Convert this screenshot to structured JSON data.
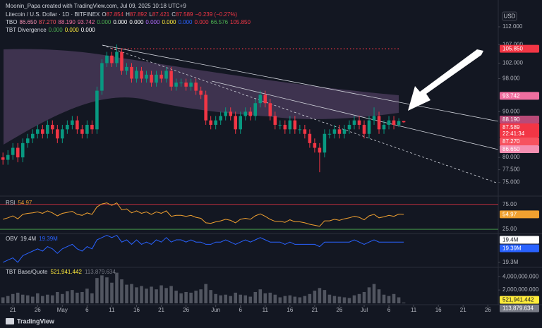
{
  "header": {
    "author_line": "Moonin_Papa created with TradingView.com, Jul 09, 2025 10:18 UTC+9",
    "symbol": "Litecoin / U.S. Dollar · 1D · BITFINEX",
    "ohlc": [
      {
        "key": "O",
        "value": "87.854"
      },
      {
        "key": "H",
        "value": "87.892"
      },
      {
        "key": "L",
        "value": "87.421"
      },
      {
        "key": "C",
        "value": "87.589"
      }
    ],
    "change": "−0.239 (−0.27%)",
    "tbo_name": "TBO",
    "tbo_values": [
      {
        "text": "86.650",
        "color": "#f48fb1"
      },
      {
        "text": "87.270",
        "color": "#f7525f"
      },
      {
        "text": "88.190",
        "color": "#f06fa0"
      },
      {
        "text": "93.742",
        "color": "#f06fa0"
      },
      {
        "text": "0.000",
        "color": "#4caf50"
      },
      {
        "text": "0.000",
        "color": "#ffffff"
      },
      {
        "text": "0.000",
        "color": "#ffffff"
      },
      {
        "text": "0.000",
        "color": "#b36bff"
      },
      {
        "text": "0.000",
        "color": "#ffeb3b"
      },
      {
        "text": "0.000",
        "color": "#2962ff"
      },
      {
        "text": "0.000",
        "color": "#f23645"
      },
      {
        "text": "66.576",
        "color": "#4caf50"
      },
      {
        "text": "105.850",
        "color": "#f23645"
      }
    ],
    "div_name": "TBT Divergence",
    "div_values": [
      {
        "text": "0.000",
        "color": "#4caf50"
      },
      {
        "text": "0.000",
        "color": "#ffeb3b"
      },
      {
        "text": "0.000",
        "color": "#ffffff"
      }
    ],
    "footer": "TradingView"
  },
  "chart_data": [
    {
      "type": "candlestick",
      "currency": "USD",
      "log": true,
      "up_color": "#089981",
      "down_color": "#f23645",
      "ylim": [
        72.8,
        117
      ],
      "yticks": [
        {
          "value": 112,
          "label": "112.000"
        },
        {
          "value": 107,
          "label": "107.000"
        },
        {
          "value": 102,
          "label": "102.000"
        },
        {
          "value": 98,
          "label": "98.000"
        },
        {
          "value": 90,
          "label": "90.000"
        },
        {
          "value": 80,
          "label": "80.000"
        },
        {
          "value": 77.5,
          "label": "77.500"
        },
        {
          "value": 75,
          "label": "75.000"
        }
      ],
      "xlim": [
        -0.6,
        100.1
      ],
      "xticks": [
        {
          "value": 2,
          "label": "21"
        },
        {
          "value": 7,
          "label": "26"
        },
        {
          "value": 12,
          "label": "May"
        },
        {
          "value": 17,
          "label": "6"
        },
        {
          "value": 22,
          "label": "11"
        },
        {
          "value": 27,
          "label": "16"
        },
        {
          "value": 32,
          "label": "21"
        },
        {
          "value": 37,
          "label": "26"
        },
        {
          "value": 43,
          "label": "Jun"
        },
        {
          "value": 48,
          "label": "6"
        },
        {
          "value": 53,
          "label": "11"
        },
        {
          "value": 58,
          "label": "16"
        },
        {
          "value": 63,
          "label": "21"
        },
        {
          "value": 68,
          "label": "26"
        },
        {
          "value": 73,
          "label": "Jul"
        },
        {
          "value": 78,
          "label": "6"
        },
        {
          "value": 83,
          "label": "11"
        },
        {
          "value": 88,
          "label": "16"
        },
        {
          "value": 93,
          "label": "21"
        },
        {
          "value": 98,
          "label": "26"
        }
      ],
      "open": [
        80,
        79.5,
        80.5,
        82,
        80,
        83,
        84,
        85,
        86,
        85,
        87,
        86,
        84,
        86,
        87,
        88,
        86,
        85,
        87,
        86,
        95,
        102,
        104,
        102,
        105,
        100,
        101,
        98,
        100,
        98,
        99,
        97,
        99,
        98,
        100,
        96,
        97,
        97,
        96,
        97,
        95,
        94,
        88,
        87,
        88,
        89,
        90,
        89,
        86,
        89,
        90,
        89,
        92,
        94,
        92,
        89,
        87,
        87,
        86,
        88,
        86,
        86,
        85,
        83,
        82,
        81,
        85,
        85,
        86,
        85,
        86,
        87,
        88,
        87,
        85,
        88,
        89,
        86,
        87,
        88,
        87,
        87.854
      ],
      "high": [
        81,
        81.5,
        83,
        83,
        84,
        85,
        86,
        87,
        87,
        88,
        88,
        87,
        87,
        88,
        89,
        89,
        87,
        88,
        88,
        96,
        103,
        105,
        105,
        107,
        106,
        102,
        102,
        101,
        101,
        100,
        100,
        100,
        100,
        101,
        101,
        98,
        98,
        98,
        98,
        98,
        96,
        95,
        89,
        89,
        90,
        91,
        91,
        90,
        90,
        91,
        91,
        93,
        95,
        95,
        93,
        90,
        88,
        88,
        89,
        89,
        87,
        87,
        86,
        84,
        83,
        86,
        86,
        87,
        87,
        87,
        88,
        89,
        89,
        88,
        89,
        91,
        90,
        88,
        89,
        89,
        88.5,
        87.892
      ],
      "low": [
        78.5,
        78.5,
        79.5,
        79,
        79,
        82,
        83,
        84,
        84,
        84,
        85,
        83,
        83,
        85,
        86,
        85,
        84,
        84,
        85,
        85,
        94,
        101,
        101,
        101,
        99,
        99,
        97,
        97,
        97,
        97,
        96,
        96,
        97,
        97,
        95,
        95,
        96,
        95,
        95,
        94,
        93,
        87,
        86,
        86,
        87,
        88,
        88,
        85,
        85,
        88,
        88,
        88,
        91,
        91,
        88,
        86,
        86,
        85,
        85,
        85,
        85,
        84,
        82,
        81,
        77,
        80,
        84,
        84,
        84,
        84,
        85,
        86,
        86,
        84,
        84,
        87,
        85,
        85,
        86,
        86,
        86.5,
        87.421
      ],
      "close": [
        79.5,
        80.5,
        82,
        80,
        83,
        84,
        85,
        86,
        85,
        87,
        86,
        84,
        86,
        87,
        88,
        86,
        85,
        87,
        86,
        95,
        102,
        104,
        102,
        105,
        100,
        101,
        98,
        100,
        98,
        99,
        97,
        99,
        98,
        100,
        96,
        97,
        97,
        96,
        97,
        95,
        94,
        88,
        87,
        88,
        89,
        90,
        89,
        86,
        89,
        90,
        89,
        92,
        94,
        92,
        89,
        87,
        87,
        86,
        88,
        86,
        86,
        85,
        83,
        82,
        81,
        85,
        85,
        86,
        85,
        86,
        87,
        88,
        87,
        85,
        88,
        89,
        86,
        87,
        88,
        87,
        87.854,
        87.589
      ],
      "price_badges": [
        {
          "value": 105.85,
          "label": "105.850",
          "color": "#f23645"
        },
        {
          "value": 93.742,
          "label": "93.742",
          "color": "#f06fa0"
        },
        {
          "value": 88.19,
          "label": "88.190",
          "color": "#b84a78"
        },
        {
          "value": 87.589,
          "label": "87.589",
          "sublabel": "22:41:34",
          "color": "#f23645"
        },
        {
          "value": 87.27,
          "label": "87.270",
          "color": "#f7525f"
        },
        {
          "value": 86.65,
          "label": "86.650",
          "color": "#f48fb1"
        }
      ]
    },
    {
      "type": "line",
      "title": "RSI",
      "color": "#f0a030",
      "ylim": [
        18,
        86
      ],
      "yticks": [
        {
          "value": 75,
          "label": "75.00",
          "color": "#f23645"
        },
        {
          "value": 25,
          "label": "25.00",
          "color": "#4caf50"
        }
      ],
      "values": [
        45,
        48,
        52,
        46,
        55,
        57,
        58,
        60,
        57,
        62,
        58,
        52,
        57,
        59,
        61,
        55,
        53,
        58,
        55,
        70,
        76,
        78,
        73,
        78,
        64,
        66,
        58,
        62,
        57,
        60,
        55,
        60,
        57,
        62,
        51,
        53,
        53,
        51,
        53,
        49,
        47,
        38,
        37,
        40,
        42,
        45,
        43,
        38,
        45,
        47,
        45,
        52,
        56,
        51,
        45,
        41,
        41,
        39,
        44,
        40,
        40,
        38,
        35,
        33,
        31,
        42,
        42,
        45,
        43,
        46,
        48,
        51,
        49,
        44,
        52,
        55,
        48,
        50,
        53,
        51,
        55.5,
        54.97
      ],
      "badges": [
        {
          "value": 54.97,
          "label": "54.97",
          "color": "#f0a030"
        }
      ]
    },
    {
      "type": "line",
      "title": "OBV",
      "color": "#2962ff",
      "ylim": [
        19.281,
        19.422
      ],
      "yticks": [
        {
          "value": 19.3,
          "label": "19.3M"
        }
      ],
      "values": [
        19.3,
        19.31,
        19.32,
        19.3,
        19.33,
        19.34,
        19.35,
        19.36,
        19.35,
        19.37,
        19.36,
        19.34,
        19.36,
        19.37,
        19.38,
        19.36,
        19.35,
        19.37,
        19.36,
        19.4,
        19.41,
        19.42,
        19.41,
        19.42,
        19.39,
        19.4,
        19.38,
        19.4,
        19.38,
        19.39,
        19.38,
        19.4,
        19.39,
        19.41,
        19.39,
        19.4,
        19.4,
        19.39,
        19.4,
        19.39,
        19.39,
        19.38,
        19.38,
        19.39,
        19.39,
        19.4,
        19.39,
        19.38,
        19.39,
        19.4,
        19.39,
        19.4,
        19.41,
        19.4,
        19.39,
        19.39,
        19.39,
        19.38,
        19.39,
        19.38,
        19.38,
        19.38,
        19.38,
        19.38,
        19.37,
        19.39,
        19.39,
        19.39,
        19.39,
        19.39,
        19.39,
        19.4,
        19.39,
        19.38,
        19.39,
        19.4,
        19.39,
        19.39,
        19.39,
        19.39,
        19.39,
        19.39
      ],
      "badges": [
        {
          "value": 19.4,
          "label": "19.4M",
          "color": "#ffffff",
          "text_color": "#131722"
        },
        {
          "value": 19.39,
          "label": "19.39M",
          "color": "#2962ff"
        }
      ]
    },
    {
      "type": "bar",
      "title": "TBT Base/Quote",
      "color": "#5d606b",
      "ylim": [
        0,
        5300000
      ],
      "yticks": [
        {
          "value": 4000000,
          "label": "4,000,000.000"
        },
        {
          "value": 2000000,
          "label": "2,000,000.000"
        }
      ],
      "values": [
        900000,
        1100000,
        1400000,
        1600000,
        1300000,
        1200000,
        1000000,
        1500000,
        1100000,
        1300000,
        1200000,
        1700000,
        1400000,
        1800000,
        2000000,
        1600000,
        1700000,
        2200000,
        1500000,
        3800000,
        4200000,
        3900000,
        3100000,
        4600000,
        3600000,
        2800000,
        2900000,
        2400000,
        2600000,
        2200000,
        2500000,
        2100000,
        2700000,
        2300000,
        2600000,
        1900000,
        1500000,
        1700000,
        1600000,
        1900000,
        2100000,
        2900000,
        2000000,
        1400000,
        1200000,
        1300000,
        1100000,
        1600000,
        1300000,
        1200000,
        1000000,
        1700000,
        2100000,
        1500000,
        1600000,
        1300000,
        900000,
        1100000,
        1200000,
        1000000,
        900000,
        1100000,
        1400000,
        1900000,
        2300000,
        2000000,
        1300000,
        1100000,
        1000000,
        900000,
        800000,
        1200000,
        1400000,
        1700000,
        2400000,
        2900000,
        2100000,
        1300000,
        1100000,
        1400000,
        900000,
        113879.634
      ],
      "badges": [
        {
          "value": 521941.442,
          "label": "521,941.442",
          "color": "#ffeb3b",
          "text_color": "#131722"
        },
        {
          "value": 113879.634,
          "label": "113,879.634",
          "color": "#787b86"
        }
      ]
    }
  ]
}
